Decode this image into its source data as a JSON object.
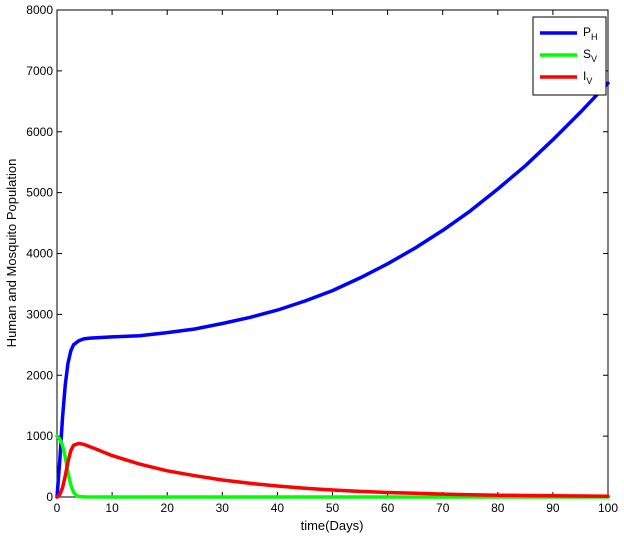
{
  "chart_data": {
    "type": "line",
    "title": "",
    "xlabel": "time(Days)",
    "ylabel": "Human and Mosquito Population",
    "xlim": [
      0,
      100
    ],
    "ylim": [
      0,
      8000
    ],
    "xticks": [
      0,
      10,
      20,
      30,
      40,
      50,
      60,
      70,
      80,
      90,
      100
    ],
    "yticks": [
      0,
      1000,
      2000,
      3000,
      4000,
      5000,
      6000,
      7000,
      8000
    ],
    "grid": false,
    "legend_position": "top-right",
    "series": [
      {
        "name": "P",
        "subscript": "H",
        "color": "#0000ff",
        "x": [
          0,
          0.5,
          1,
          1.5,
          2,
          2.5,
          3,
          4,
          5,
          6,
          8,
          10,
          15,
          20,
          25,
          30,
          35,
          40,
          45,
          50,
          55,
          60,
          65,
          70,
          75,
          80,
          85,
          90,
          95,
          100
        ],
        "y": [
          0,
          600,
          1300,
          1850,
          2200,
          2400,
          2500,
          2570,
          2600,
          2610,
          2620,
          2630,
          2650,
          2700,
          2760,
          2850,
          2950,
          3070,
          3220,
          3390,
          3600,
          3830,
          4090,
          4380,
          4700,
          5060,
          5440,
          5870,
          6320,
          6800
        ]
      },
      {
        "name": "S",
        "subscript": "V",
        "color": "#00ff00",
        "x": [
          0,
          0.5,
          1,
          1.5,
          2,
          2.5,
          3,
          3.5,
          4,
          5,
          10,
          20,
          40,
          60,
          80,
          100
        ],
        "y": [
          1000,
          950,
          850,
          650,
          400,
          200,
          80,
          25,
          8,
          2,
          0,
          0,
          0,
          0,
          0,
          0
        ]
      },
      {
        "name": "I",
        "subscript": "V",
        "color": "#ff0000",
        "x": [
          0,
          0.5,
          1,
          1.5,
          2,
          2.5,
          3,
          4,
          5,
          7,
          10,
          15,
          20,
          25,
          30,
          35,
          40,
          45,
          50,
          55,
          60,
          65,
          70,
          75,
          80,
          85,
          90,
          95,
          100
        ],
        "y": [
          0,
          40,
          150,
          350,
          580,
          760,
          850,
          880,
          860,
          790,
          680,
          540,
          430,
          350,
          280,
          225,
          180,
          145,
          115,
          92,
          74,
          60,
          48,
          38,
          30,
          24,
          20,
          16,
          13
        ]
      }
    ]
  }
}
